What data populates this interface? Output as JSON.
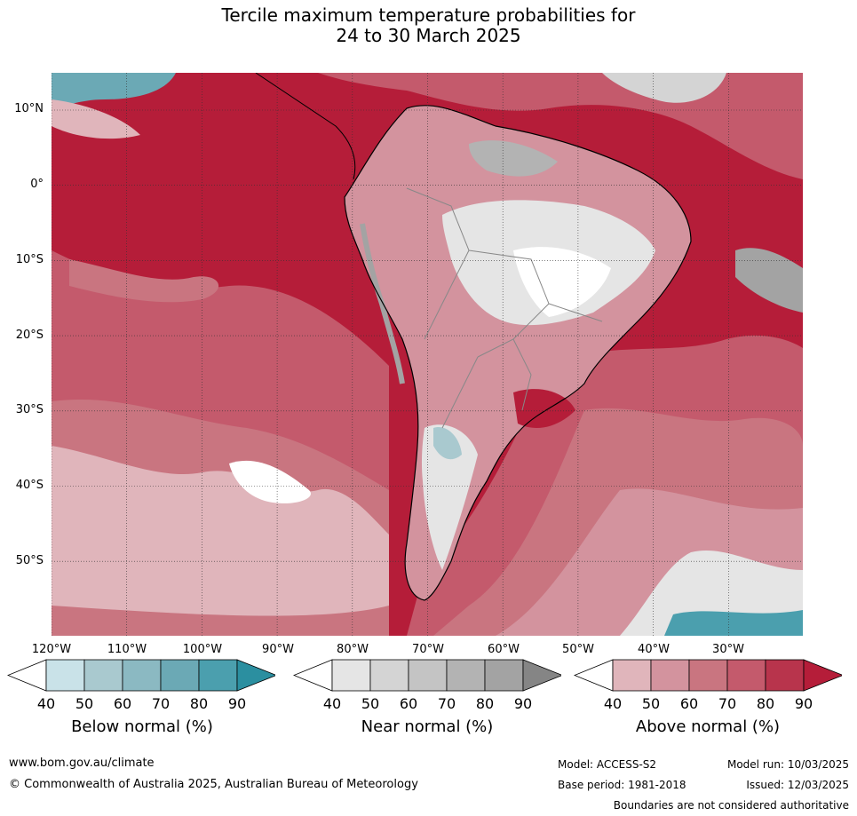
{
  "title": {
    "line1": "Tercile maximum temperature probabilities for",
    "line2": "24 to 30 March 2025"
  },
  "map": {
    "lat_labels": [
      "10°N",
      "0°",
      "10°S",
      "20°S",
      "30°S",
      "40°S",
      "50°S"
    ],
    "lon_labels": [
      "120°W",
      "110°W",
      "100°W",
      "90°W",
      "80°W",
      "70°W",
      "60°W",
      "50°W",
      "40°W",
      "30°W"
    ],
    "colors": {
      "above": [
        "#e0b5bb",
        "#d3939e",
        "#c97580",
        "#c45a6c",
        "#b8344c",
        "#b51d39"
      ],
      "near": [
        "#e5e5e5",
        "#d4d4d4",
        "#c4c4c4",
        "#b3b3b3",
        "#a3a3a3",
        "#858585"
      ],
      "below": [
        "#c9e2e8",
        "#a9c9cf",
        "#8bb9c2",
        "#6ba9b5",
        "#4b9fae",
        "#2b8fa0"
      ]
    }
  },
  "legends": [
    {
      "title": "Below normal (%)",
      "ticks": [
        "40",
        "50",
        "60",
        "70",
        "80",
        "90"
      ],
      "colors": [
        "#ffffff",
        "#c9e2e8",
        "#a9c9cf",
        "#8bb9c2",
        "#6ba9b5",
        "#4b9fae",
        "#2b8fa0"
      ]
    },
    {
      "title": "Near normal (%)",
      "ticks": [
        "40",
        "50",
        "60",
        "70",
        "80",
        "90"
      ],
      "colors": [
        "#ffffff",
        "#e5e5e5",
        "#d4d4d4",
        "#c4c4c4",
        "#b3b3b3",
        "#a3a3a3",
        "#858585"
      ]
    },
    {
      "title": "Above normal (%)",
      "ticks": [
        "40",
        "50",
        "60",
        "70",
        "80",
        "90"
      ],
      "colors": [
        "#ffffff",
        "#e0b5bb",
        "#d3939e",
        "#c97580",
        "#c45a6c",
        "#b8344c",
        "#b51d39"
      ]
    }
  ],
  "footer": {
    "website": "www.bom.gov.au/climate",
    "copyright": "© Commonwealth of Australia 2025, Australian Bureau of Meteorology",
    "model": "Model: ACCESS-S2",
    "model_run": "Model run: 10/03/2025",
    "base_period": "Base period: 1981-2018",
    "issued": "Issued: 12/03/2025",
    "disclaimer": "Boundaries are not considered authoritative"
  }
}
